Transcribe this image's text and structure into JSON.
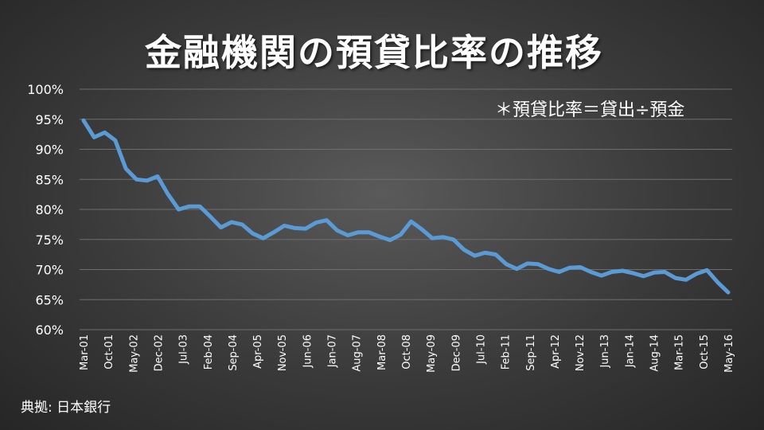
{
  "chart_data": {
    "type": "line",
    "title": "金融機関の預貸比率の推移",
    "annotation": "＊預貸比率＝貸出÷預金",
    "source": "典拠: 日本銀行",
    "ylim": [
      60,
      100
    ],
    "yticks": [
      "60%",
      "65%",
      "70%",
      "75%",
      "80%",
      "85%",
      "90%",
      "95%",
      "100%"
    ],
    "ytick_values": [
      60,
      65,
      70,
      75,
      80,
      85,
      90,
      95,
      100
    ],
    "grid": true,
    "x_tick_labels": [
      "Mar-01",
      "Oct-01",
      "May-02",
      "Dec-02",
      "Jul-03",
      "Feb-04",
      "Sep-04",
      "Apr-05",
      "Nov-05",
      "Jun-06",
      "Jan-07",
      "Aug-07",
      "Mar-08",
      "Oct-08",
      "May-09",
      "Dec-09",
      "Jul-10",
      "Feb-11",
      "Sep-11",
      "Apr-12",
      "Nov-12",
      "Jun-13",
      "Jan-14",
      "Aug-14",
      "Mar-15",
      "Oct-15",
      "May-16"
    ],
    "series": [
      {
        "color": "#5b9bd5",
        "values": [
          94.8,
          92.0,
          92.8,
          91.5,
          86.8,
          85.0,
          84.8,
          85.5,
          82.5,
          80.0,
          80.5,
          80.5,
          78.8,
          77.0,
          77.9,
          77.5,
          76.0,
          75.2,
          76.2,
          77.3,
          76.9,
          76.8,
          77.8,
          78.2,
          76.5,
          75.7,
          76.2,
          76.2,
          75.5,
          74.9,
          75.8,
          78.0,
          76.7,
          75.2,
          75.4,
          75.0,
          73.3,
          72.3,
          72.8,
          72.5,
          70.9,
          70.1,
          71.0,
          70.9,
          70.1,
          69.6,
          70.3,
          70.4,
          69.6,
          69.0,
          69.6,
          69.8,
          69.4,
          68.9,
          69.5,
          69.6,
          68.6,
          68.3,
          69.3,
          69.9,
          67.9,
          66.2
        ]
      }
    ]
  }
}
